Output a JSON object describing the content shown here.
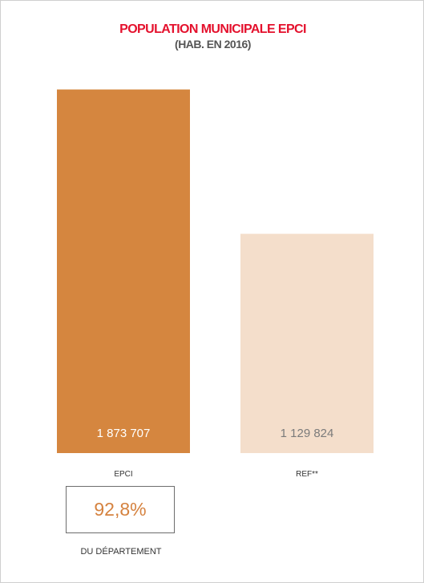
{
  "chart_data": {
    "type": "bar",
    "title": "POPULATION MUNICIPALE EPCI",
    "subtitle": "(HAB. EN 2016)",
    "categories": [
      "EPCI",
      "REF**"
    ],
    "values": [
      1873707,
      1129824
    ],
    "value_labels": [
      "1 873 707",
      "1 129 824"
    ],
    "colors": [
      "#d5863f",
      "#f4decb"
    ],
    "value_label_colors": [
      "#ffffff",
      "#7b7b7b"
    ],
    "ylim": [
      0,
      2000000
    ],
    "grid": false,
    "legend": "none"
  },
  "callout": {
    "value": "92,8%",
    "label": "DU DÉPARTEMENT"
  }
}
